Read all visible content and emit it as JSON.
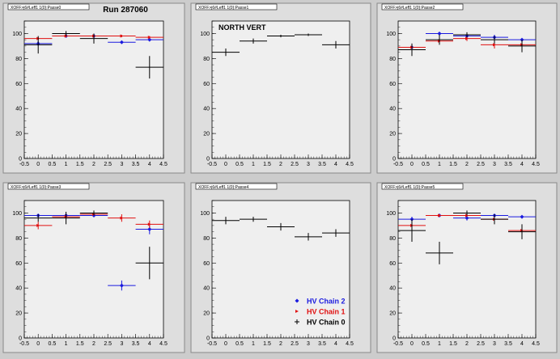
{
  "run_label": "Run 287060",
  "chart_data": [
    {
      "type": "scatter",
      "title": "XOFF>j6#Leff1 1{0}:Passe0",
      "annotation": "",
      "xlim": [
        -0.5,
        4.5
      ],
      "ylim": [
        0,
        110
      ],
      "xticks": [
        "-0.5",
        "0",
        "0.5",
        "1",
        "1.5",
        "2",
        "2.5",
        "3",
        "3.5",
        "4",
        "4.5"
      ],
      "yticks": [
        "0",
        "20",
        "40",
        "60",
        "80",
        "100"
      ],
      "series": [
        {
          "name": "HV Chain 2",
          "x": [
            0,
            1,
            2,
            3,
            4
          ],
          "y": [
            92,
            98,
            98,
            93,
            95
          ],
          "yerr": [
            2,
            1,
            1,
            1,
            1
          ]
        },
        {
          "name": "HV Chain 1",
          "x": [
            0,
            1,
            2,
            3,
            4
          ],
          "y": [
            96,
            98,
            98,
            98,
            97
          ],
          "yerr": [
            1,
            1,
            1,
            1,
            1
          ]
        },
        {
          "name": "HV Chain 0",
          "x": [
            0,
            1,
            2,
            3,
            4
          ],
          "y": [
            91,
            100,
            96,
            null,
            73
          ],
          "yerr": [
            7,
            2,
            4,
            0,
            9
          ]
        }
      ]
    },
    {
      "type": "scatter",
      "title": "XOFF>j6#Leff1 1{0}:Passe1",
      "annotation": "NORTH VERT",
      "xlim": [
        -0.5,
        4.5
      ],
      "ylim": [
        0,
        110
      ],
      "xticks": [
        "-0.5",
        "0",
        "0.5",
        "1",
        "1.5",
        "2",
        "2.5",
        "3",
        "3.5",
        "4",
        "4.5"
      ],
      "yticks": [
        "0",
        "20",
        "40",
        "60",
        "80",
        "100"
      ],
      "series": [
        {
          "name": "HV Chain 0",
          "x": [
            0,
            1,
            2,
            3,
            4
          ],
          "y": [
            85,
            94,
            98,
            99,
            91
          ],
          "yerr": [
            3,
            2,
            1,
            1,
            3
          ]
        }
      ]
    },
    {
      "type": "scatter",
      "title": "XOFF>j6#Leff1 1{0}:Passe2",
      "annotation": "",
      "xlim": [
        -0.5,
        4.5
      ],
      "ylim": [
        0,
        110
      ],
      "xticks": [
        "-0.5",
        "0",
        "0.5",
        "1",
        "1.5",
        "2",
        "2.5",
        "3",
        "3.5",
        "4",
        "4.5"
      ],
      "yticks": [
        "0",
        "20",
        "40",
        "60",
        "80",
        "100"
      ],
      "series": [
        {
          "name": "HV Chain 2",
          "x": [
            0,
            1,
            2,
            3,
            4
          ],
          "y": [
            89,
            100,
            98,
            97,
            95
          ],
          "yerr": [
            3,
            1,
            1,
            2,
            1
          ]
        },
        {
          "name": "HV Chain 1",
          "x": [
            0,
            1,
            2,
            3,
            4
          ],
          "y": [
            89,
            94,
            96,
            91,
            91
          ],
          "yerr": [
            3,
            2,
            2,
            3,
            3
          ]
        },
        {
          "name": "HV Chain 0",
          "x": [
            0,
            1,
            2,
            3,
            4
          ],
          "y": [
            87,
            95,
            99,
            95,
            90
          ],
          "yerr": [
            5,
            4,
            2,
            3,
            5
          ]
        }
      ]
    },
    {
      "type": "scatter",
      "title": "XOFF>j6#Leff1 1{0}:Passe3",
      "annotation": "",
      "xlim": [
        -0.5,
        4.5
      ],
      "ylim": [
        0,
        110
      ],
      "xticks": [
        "-0.5",
        "0",
        "0.5",
        "1",
        "1.5",
        "2",
        "2.5",
        "3",
        "3.5",
        "4",
        "4.5"
      ],
      "yticks": [
        "0",
        "20",
        "40",
        "60",
        "80",
        "100"
      ],
      "series": [
        {
          "name": "HV Chain 2",
          "x": [
            0,
            1,
            2,
            3,
            4
          ],
          "y": [
            98,
            98,
            98,
            42,
            87
          ],
          "yerr": [
            1,
            1,
            1,
            4,
            4
          ]
        },
        {
          "name": "HV Chain 1",
          "x": [
            0,
            1,
            2,
            3,
            4
          ],
          "y": [
            90,
            97,
            99,
            96,
            91
          ],
          "yerr": [
            3,
            2,
            1,
            3,
            3
          ]
        },
        {
          "name": "HV Chain 0",
          "x": [
            0,
            1,
            2,
            3,
            4
          ],
          "y": [
            96,
            96,
            100,
            null,
            60
          ],
          "yerr": [
            3,
            5,
            2,
            0,
            13
          ]
        }
      ]
    },
    {
      "type": "scatter",
      "title": "XOFF>j6#Leff1 1{0}:Passe4",
      "annotation": "",
      "xlim": [
        -0.5,
        4.5
      ],
      "ylim": [
        0,
        110
      ],
      "xticks": [
        "-0.5",
        "0",
        "0.5",
        "1",
        "1.5",
        "2",
        "2.5",
        "3",
        "3.5",
        "4",
        "4.5"
      ],
      "yticks": [
        "0",
        "20",
        "40",
        "60",
        "80",
        "100"
      ],
      "legend_position": "bottom-right",
      "series": [
        {
          "name": "HV Chain 0",
          "x": [
            0,
            1,
            2,
            3,
            4
          ],
          "y": [
            94,
            95,
            89,
            81,
            84
          ],
          "yerr": [
            3,
            2,
            3,
            3,
            3
          ]
        }
      ]
    },
    {
      "type": "scatter",
      "title": "XOFF>j6#Leff1 1{0}:Passe5",
      "annotation": "",
      "xlim": [
        -0.5,
        4.5
      ],
      "ylim": [
        0,
        110
      ],
      "xticks": [
        "-0.5",
        "0",
        "0.5",
        "1",
        "1.5",
        "2",
        "2.5",
        "3",
        "3.5",
        "4",
        "4.5"
      ],
      "yticks": [
        "0",
        "20",
        "40",
        "60",
        "80",
        "100"
      ],
      "series": [
        {
          "name": "HV Chain 2",
          "x": [
            0,
            1,
            2,
            3,
            4
          ],
          "y": [
            95,
            98,
            96,
            98,
            97
          ],
          "yerr": [
            2,
            1,
            2,
            1,
            1
          ]
        },
        {
          "name": "HV Chain 1",
          "x": [
            0,
            1,
            2,
            3,
            4
          ],
          "y": [
            90,
            98,
            98,
            95,
            86
          ],
          "yerr": [
            4,
            1,
            1,
            2,
            4
          ]
        },
        {
          "name": "HV Chain 0",
          "x": [
            0,
            1,
            2,
            3,
            4
          ],
          "y": [
            86,
            68,
            100,
            95,
            85
          ],
          "yerr": [
            9,
            9,
            2,
            4,
            6
          ]
        }
      ]
    }
  ],
  "legend": [
    {
      "name": "HV Chain 2",
      "marker": "diamond"
    },
    {
      "name": "HV Chain 1",
      "marker": "arrow"
    },
    {
      "name": "HV Chain 0",
      "marker": "plus"
    }
  ],
  "colors": {
    "HV Chain 2": "#1a1adf",
    "HV Chain 1": "#e01010",
    "HV Chain 0": "#000000",
    "frame": "#dedede",
    "plot_bg": "#efefef"
  }
}
